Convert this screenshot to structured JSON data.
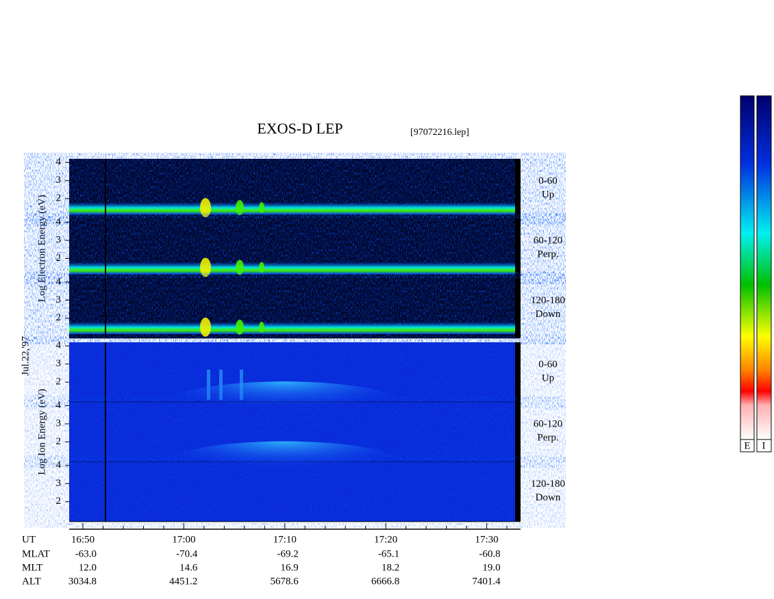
{
  "chart_data": {
    "type": "spectrogram",
    "title": "EXOS-D LEP",
    "file": "[97072216.lep]",
    "date": "Jul.22,'97",
    "ylim": [
      0.9,
      4.2
    ],
    "groups": [
      {
        "ylabel": "Log Electron Energy (eV)",
        "panels": [
          {
            "label": "0-60",
            "sub": "Up",
            "yticks": [
              2,
              3,
              4
            ]
          },
          {
            "label": "60-120",
            "sub": "Perp.",
            "yticks": [
              2,
              3,
              4
            ]
          },
          {
            "label": "120-180",
            "sub": "Down",
            "yticks": [
              2,
              3,
              4
            ]
          }
        ]
      },
      {
        "ylabel": "Log Ion Energy (eV)",
        "panels": [
          {
            "label": "0-60",
            "sub": "Up",
            "yticks": [
              2,
              3,
              4
            ]
          },
          {
            "label": "60-120",
            "sub": "Perp.",
            "yticks": [
              2,
              3,
              4
            ]
          },
          {
            "label": "120-180",
            "sub": "Down",
            "yticks": [
              2,
              3,
              4
            ]
          }
        ]
      }
    ],
    "x_rows": [
      {
        "name": "UT",
        "values": [
          "16:50",
          "17:00",
          "17:10",
          "17:20",
          "17:30"
        ]
      },
      {
        "name": "MLAT",
        "values": [
          "-63.0",
          "-70.4",
          "-69.2",
          "-65.1",
          "-60.8"
        ]
      },
      {
        "name": "MLT",
        "values": [
          "12.0",
          "14.6",
          "16.9",
          "18.2",
          "19.0"
        ]
      },
      {
        "name": "ALT",
        "values": [
          "3034.8",
          "4451.2",
          "5678.6",
          "6666.8",
          "7401.4"
        ]
      }
    ],
    "colorbar_labels": [
      "E",
      "I"
    ]
  }
}
